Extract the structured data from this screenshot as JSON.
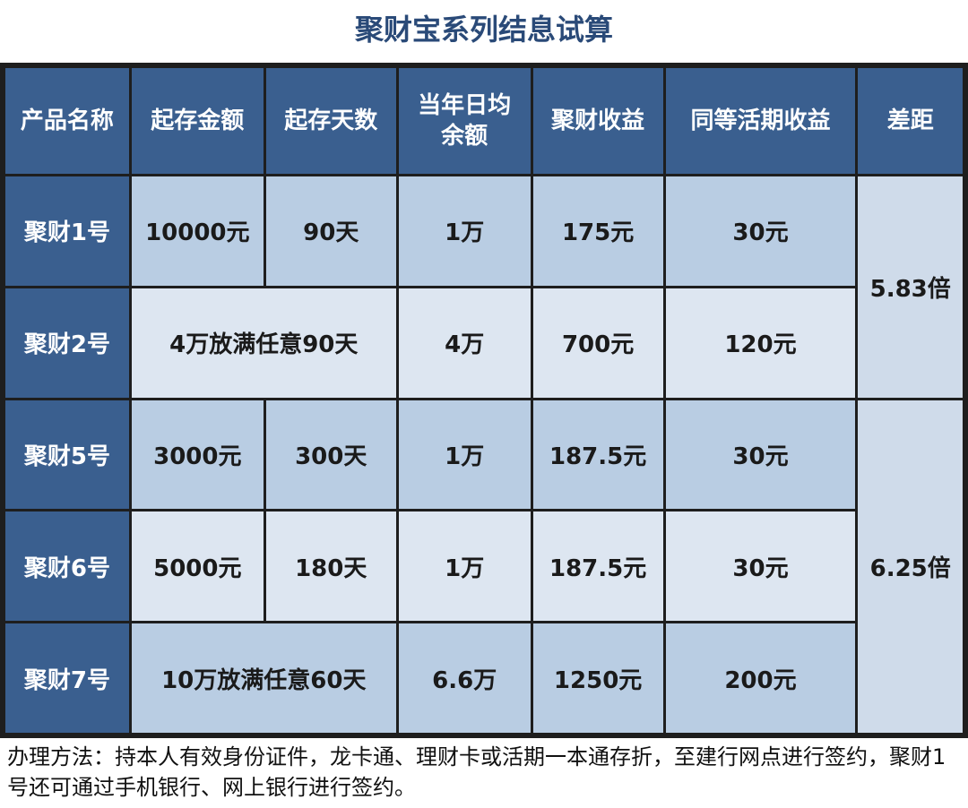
{
  "title": "聚财宝系列结息试算",
  "headers": [
    "产品名称",
    "起存金额",
    "起存天数",
    "当年日均余额",
    "聚财收益",
    "同等活期收益",
    "差距"
  ],
  "header_avg_line1": "当年日均",
  "header_avg_line2": "余额",
  "rows": [
    {
      "name": "聚财1号",
      "amount": "10000元",
      "days": "90天",
      "avg": "1万",
      "income": "175元",
      "demand": "30元"
    },
    {
      "name": "聚财2号",
      "merged": "4万放满任意90天",
      "avg": "4万",
      "income": "700元",
      "demand": "120元"
    },
    {
      "name": "聚财5号",
      "amount": "3000元",
      "days": "300天",
      "avg": "1万",
      "income": "187.5元",
      "demand": "30元"
    },
    {
      "name": "聚财6号",
      "amount": "5000元",
      "days": "180天",
      "avg": "1万",
      "income": "187.5元",
      "demand": "30元"
    },
    {
      "name": "聚财7号",
      "merged": "10万放满任意60天",
      "avg": "6.6万",
      "income": "1250元",
      "demand": "200元"
    }
  ],
  "gaps": [
    "5.83倍",
    "6.25倍"
  ],
  "note": "办理方法：持本人有效身份证件，龙卡通、理财卡或活期一本通存折，至建行网点进行签约，聚财1号还可通过手机银行、网上银行进行签约。"
}
